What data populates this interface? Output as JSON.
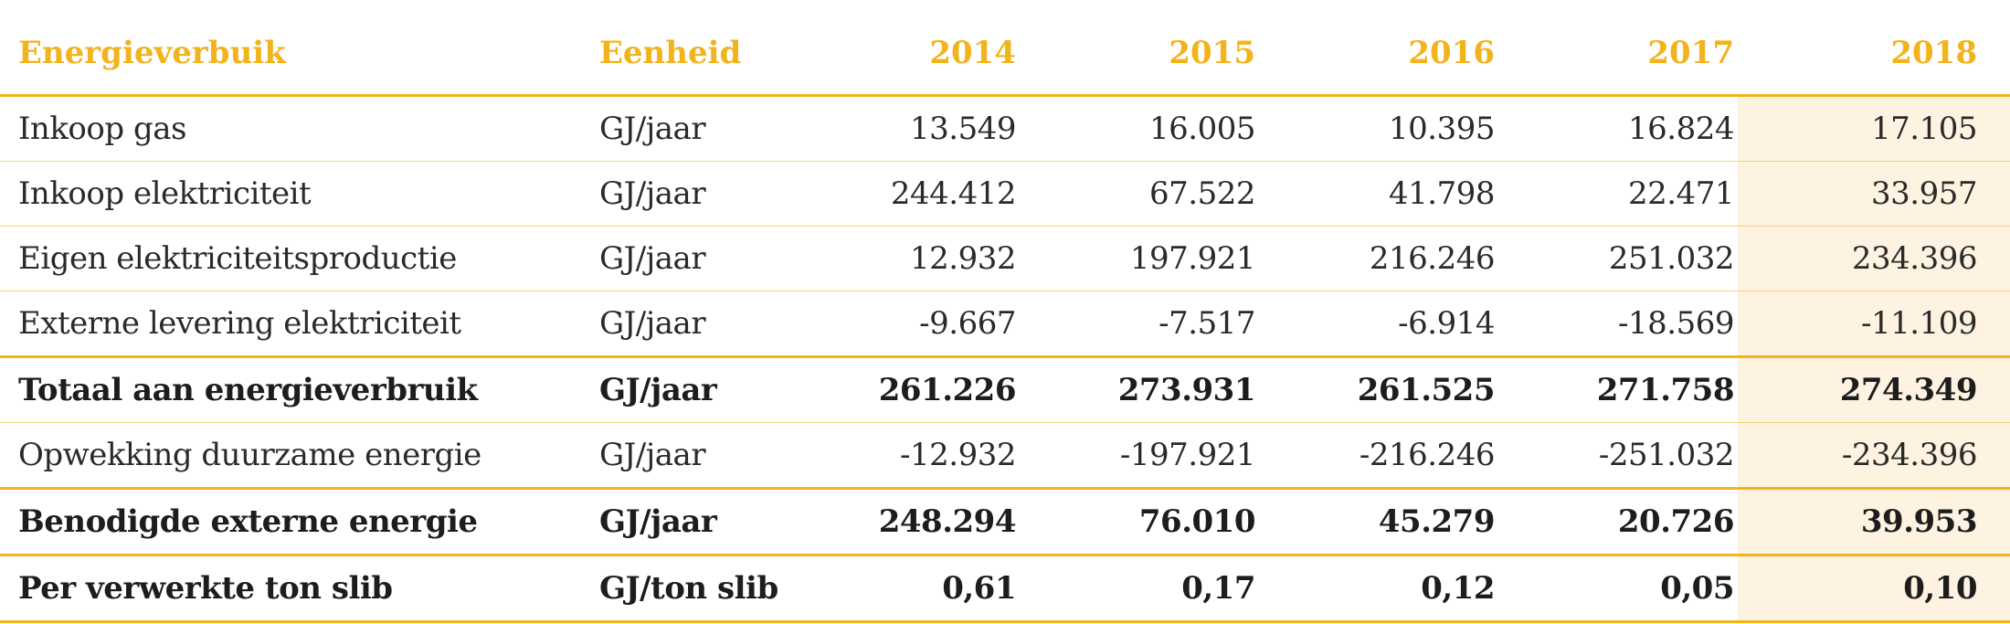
{
  "table": {
    "headers": [
      "Energieverbuik",
      "Eenheid",
      "2014",
      "2015",
      "2016",
      "2017",
      "2018"
    ],
    "rows": [
      {
        "label": "Inkoop gas",
        "unit": "GJ/jaar",
        "values": [
          "13.549",
          "16.005",
          "10.395",
          "16.824",
          "17.105"
        ]
      },
      {
        "label": "Inkoop elektriciteit",
        "unit": "GJ/jaar",
        "values": [
          "244.412",
          "67.522",
          "41.798",
          "22.471",
          "33.957"
        ]
      },
      {
        "label": "Eigen elektriciteitsproductie",
        "unit": "GJ/jaar",
        "values": [
          "12.932",
          "197.921",
          "216.246",
          "251.032",
          "234.396"
        ]
      },
      {
        "label": "Externe levering elektriciteit",
        "unit": "GJ/jaar",
        "values": [
          "-9.667",
          "-7.517",
          "-6.914",
          "-18.569",
          "-11.109"
        ]
      },
      {
        "label": "Totaal aan energieverbruik",
        "unit": "GJ/jaar",
        "values": [
          "261.226",
          "273.931",
          "261.525",
          "271.758",
          "274.349"
        ]
      },
      {
        "label": "Opwekking duurzame energie",
        "unit": "GJ/jaar",
        "values": [
          "-12.932",
          "-197.921",
          "-216.246",
          "-251.032",
          "-234.396"
        ]
      },
      {
        "label": "Benodigde externe energie",
        "unit": "GJ/jaar",
        "values": [
          "248.294",
          "76.010",
          "45.279",
          "20.726",
          "39.953"
        ]
      },
      {
        "label": "Per verwerkte ton slib",
        "unit": "GJ/ton slib",
        "values": [
          "0,61",
          "0,17",
          "0,12",
          "0,05",
          "0,10"
        ]
      }
    ]
  },
  "colors": {
    "accent": "#f2b31c",
    "rule_light": "#f5d27e",
    "highlight_column": "#fdf3e0",
    "text": "#2a2a2a"
  }
}
